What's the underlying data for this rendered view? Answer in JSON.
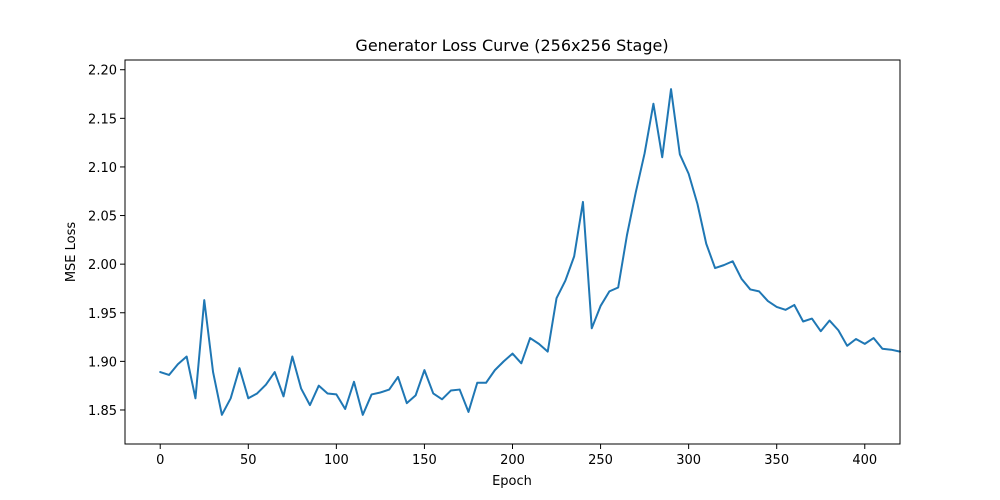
{
  "chart_data": {
    "type": "line",
    "title": "Generator Loss Curve (256x256 Stage)",
    "xlabel": "Epoch",
    "ylabel": "MSE Loss",
    "xlim": [
      -20,
      420
    ],
    "ylim": [
      1.815,
      2.21
    ],
    "xticks": [
      0,
      50,
      100,
      150,
      200,
      250,
      300,
      350,
      400
    ],
    "xtick_labels": [
      "0",
      "50",
      "100",
      "150",
      "200",
      "250",
      "300",
      "350",
      "400"
    ],
    "yticks": [
      1.85,
      1.9,
      1.95,
      2.0,
      2.05,
      2.1,
      2.15,
      2.2
    ],
    "ytick_labels": [
      "1.85",
      "1.90",
      "1.95",
      "2.00",
      "2.05",
      "2.10",
      "2.15",
      "2.20"
    ],
    "grid": false,
    "line_color": "#1f77b4",
    "x_step": 5,
    "series": [
      {
        "values": [
          1.889,
          1.886,
          1.897,
          1.905,
          1.862,
          1.963,
          1.889,
          1.845,
          1.862,
          1.893,
          1.862,
          1.867,
          1.876,
          1.889,
          1.864,
          1.905,
          1.872,
          1.855,
          1.875,
          1.867,
          1.866,
          1.851,
          1.879,
          1.845,
          1.866,
          1.868,
          1.871,
          1.884,
          1.857,
          1.865,
          1.891,
          1.867,
          1.861,
          1.87,
          1.871,
          1.848,
          1.878,
          1.878,
          1.891,
          1.9,
          1.908,
          1.898,
          1.924,
          1.918,
          1.91,
          1.965,
          1.983,
          2.008,
          2.064,
          1.934,
          1.957,
          1.972,
          1.976,
          2.03,
          2.074,
          2.114,
          2.165,
          2.11,
          2.18,
          2.113,
          2.093,
          2.062,
          2.021,
          1.996,
          1.999,
          2.003,
          1.985,
          1.974,
          1.972,
          1.962,
          1.956,
          1.953,
          1.958,
          1.941,
          1.944,
          1.931,
          1.942,
          1.932,
          1.916,
          1.923,
          1.918,
          1.924,
          1.913,
          1.912,
          1.91
        ]
      }
    ]
  }
}
